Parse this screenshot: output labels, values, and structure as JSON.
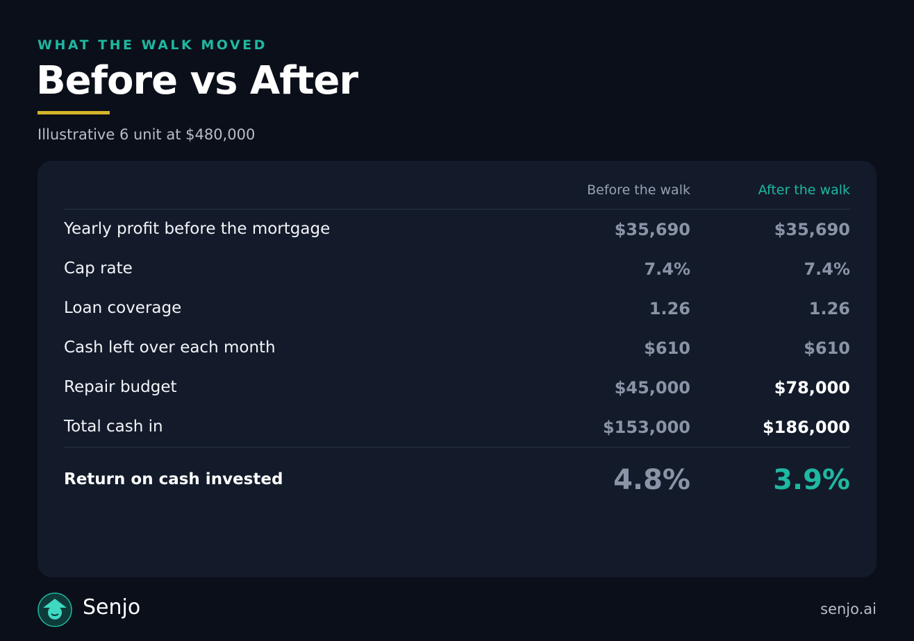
{
  "header": {
    "eyebrow": "WHAT THE WALK MOVED",
    "title": "Before vs After",
    "subtitle": "Illustrative 6 unit at $480,000"
  },
  "table": {
    "columns": [
      "Before the walk",
      "After the walk"
    ],
    "rows": [
      [
        "Yearly profit before the mortgage",
        "$35,690",
        "$35,690"
      ],
      [
        "Cap rate",
        "7.4%",
        "7.4%"
      ],
      [
        "Loan coverage",
        "1.26",
        "1.26"
      ],
      [
        "Cash left over each month",
        "$610",
        "$610"
      ],
      [
        "Repair budget",
        "$45,000",
        "$78,000"
      ],
      [
        "Total cash in",
        "$153,000",
        "$186,000"
      ]
    ],
    "total": [
      "Return on cash invested",
      "4.8%",
      "3.9%"
    ]
  },
  "footer": {
    "brand": "Senjo",
    "url": "senjo.ai"
  }
}
